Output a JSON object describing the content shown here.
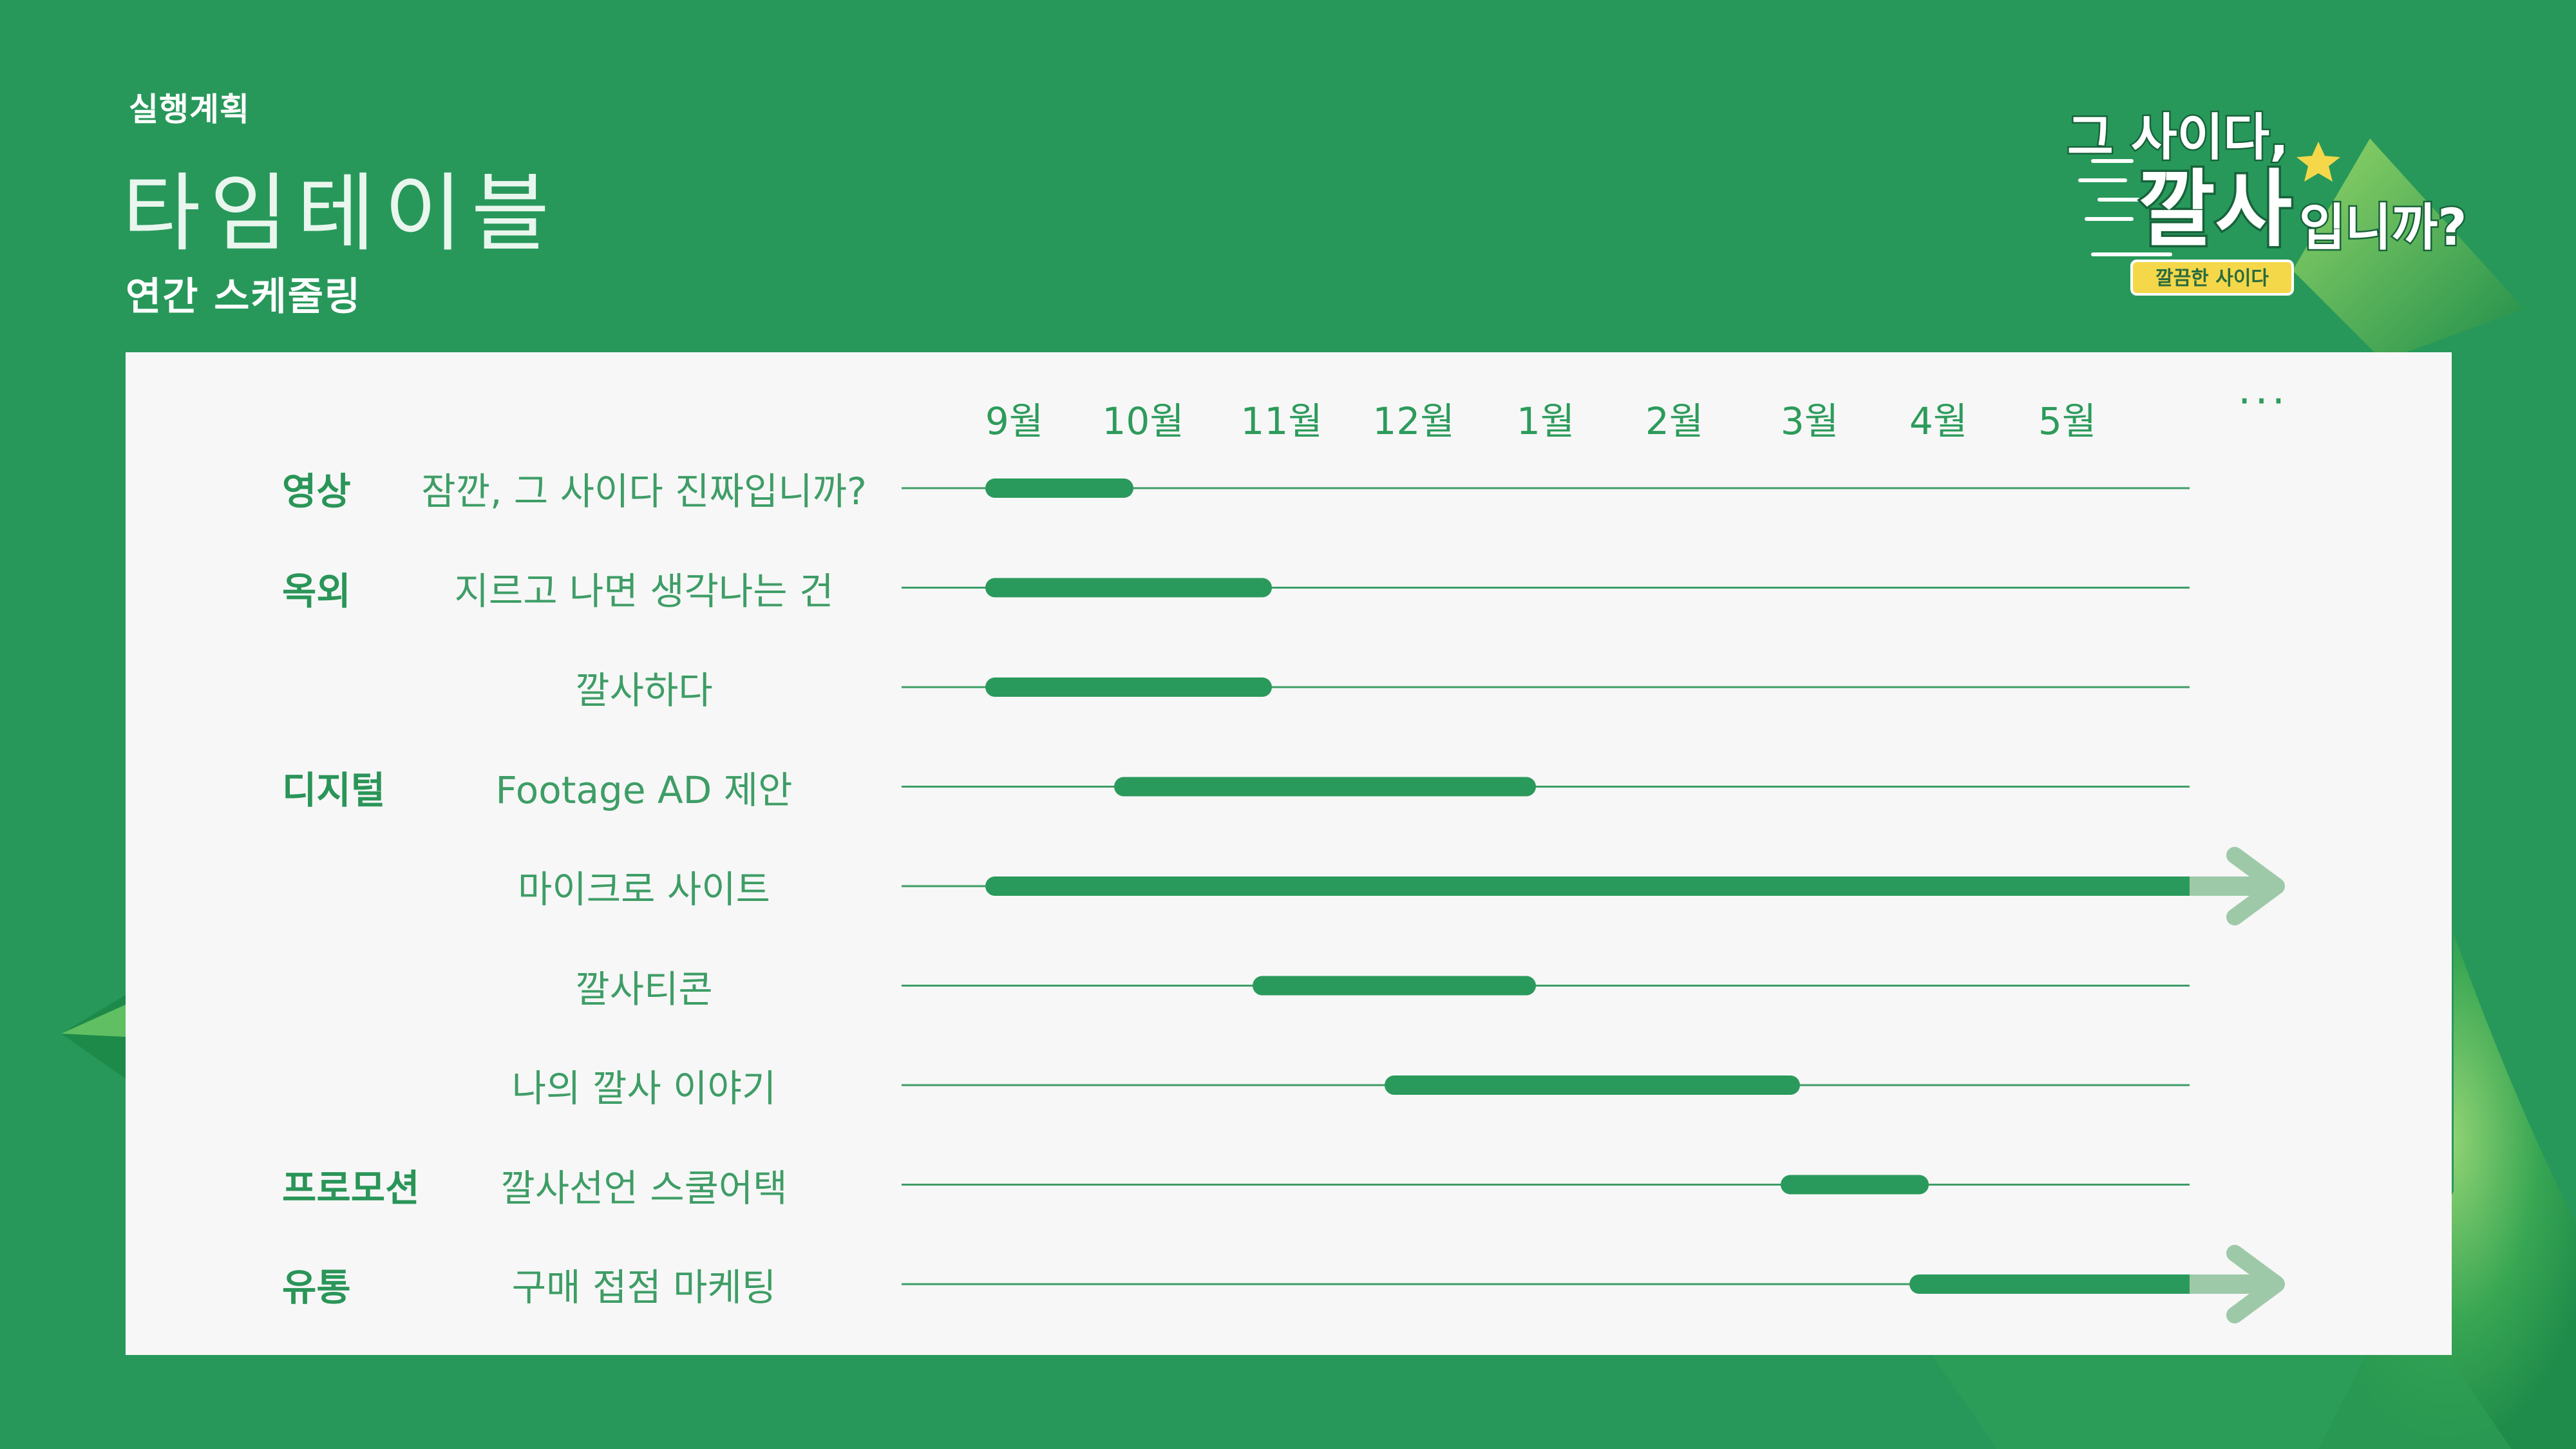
{
  "header": {
    "section": "실행계획",
    "title": "타임테이블",
    "subtitle": "연간 스케줄링"
  },
  "logo": {
    "line1": "그 사이다,",
    "line2": "깔사",
    "line3": "입니까?",
    "tag": "깔끔한 사이다"
  },
  "colors": {
    "background": "#27985a",
    "panel": "#f7f7f7",
    "bar": "#2a9a5c",
    "arrow": "#9ec9a8",
    "line": "#3e9d66"
  },
  "timeline": {
    "months": [
      "9월",
      "10월",
      "11월",
      "12월",
      "1월",
      "2월",
      "3월",
      "4월",
      "5월"
    ],
    "more": "···"
  },
  "rows": [
    {
      "category": "영상",
      "label": "잠깐, 그 사이다 진짜입니까?",
      "start": 0,
      "end": 1,
      "continues": false
    },
    {
      "category": "옥외",
      "label": "지르고 나면 생각나는 건",
      "start": 0,
      "end": 2,
      "continues": false
    },
    {
      "category": "",
      "label": "깔사하다",
      "start": 0,
      "end": 2,
      "continues": false
    },
    {
      "category": "디지털",
      "label": "Footage AD 제안",
      "start": 1,
      "end": 4,
      "continues": false
    },
    {
      "category": "",
      "label": "마이크로 사이트",
      "start": 0,
      "end": 9,
      "continues": true
    },
    {
      "category": "",
      "label": "깔사티콘",
      "start": 2,
      "end": 4,
      "continues": false
    },
    {
      "category": "",
      "label": "나의 깔사 이야기",
      "start": 3,
      "end": 6,
      "continues": false
    },
    {
      "category": "프로모션",
      "label": "깔사선언 스쿨어택",
      "start": 6,
      "end": 7,
      "continues": false
    },
    {
      "category": "유통",
      "label": "구매 접점 마케팅",
      "start": 7,
      "end": 9,
      "continues": true
    }
  ]
}
